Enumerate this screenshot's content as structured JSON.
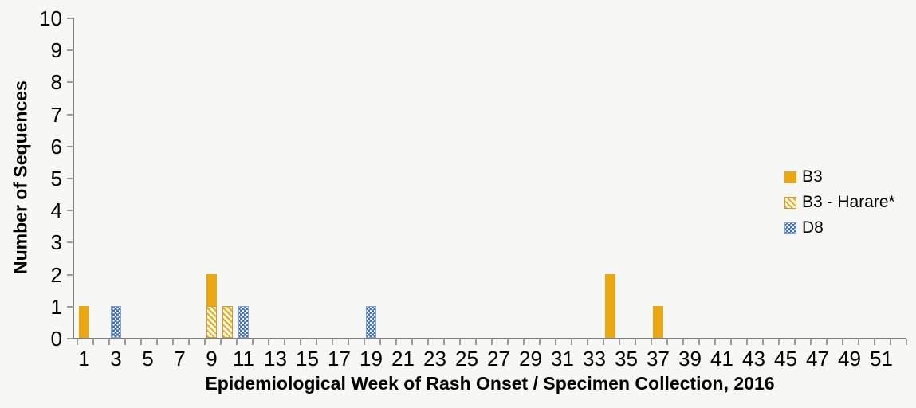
{
  "chart_data": {
    "type": "bar",
    "title": "",
    "xlabel": "Epidemiological Week of Rash Onset / Specimen Collection, 2016",
    "ylabel": "Number of Sequences",
    "ylim": [
      0,
      10
    ],
    "y_ticks": [
      0,
      1,
      2,
      3,
      4,
      5,
      6,
      7,
      8,
      9,
      10
    ],
    "x_tick_labels": [
      1,
      3,
      5,
      7,
      9,
      11,
      13,
      15,
      17,
      19,
      21,
      23,
      25,
      27,
      29,
      31,
      33,
      35,
      37,
      39,
      41,
      43,
      45,
      47,
      49,
      51
    ],
    "n_weeks": 52,
    "grid": "off",
    "legend_position": "right",
    "legend": [
      {
        "label": "B3",
        "style": "solid"
      },
      {
        "label": "B3 - Harare*",
        "style": "hatch"
      },
      {
        "label": "D8",
        "style": "dots"
      }
    ],
    "bars": [
      {
        "week": 1,
        "segments": [
          {
            "series": "B3",
            "value": 1
          }
        ]
      },
      {
        "week": 3,
        "segments": [
          {
            "series": "D8",
            "value": 1
          }
        ]
      },
      {
        "week": 9,
        "segments": [
          {
            "series": "B3 - Harare*",
            "value": 1
          },
          {
            "series": "B3",
            "value": 1
          }
        ]
      },
      {
        "week": 10,
        "segments": [
          {
            "series": "B3 - Harare*",
            "value": 1
          }
        ]
      },
      {
        "week": 11,
        "segments": [
          {
            "series": "D8",
            "value": 1
          }
        ]
      },
      {
        "week": 19,
        "segments": [
          {
            "series": "D8",
            "value": 1
          }
        ]
      },
      {
        "week": 34,
        "segments": [
          {
            "series": "B3",
            "value": 2
          }
        ]
      },
      {
        "week": 37,
        "segments": [
          {
            "series": "B3",
            "value": 1
          }
        ]
      }
    ]
  },
  "colors": {
    "b3_gold": "#E8A713",
    "d8_blue": "#3B69B5",
    "hatch_background": "#FDF9EC",
    "hatch_border": "#D59E22",
    "dots_border": "#7FA0D6",
    "axis_gray": "#808080",
    "tick_gray": "#9B9B9B",
    "background": "#F7F7F5"
  }
}
